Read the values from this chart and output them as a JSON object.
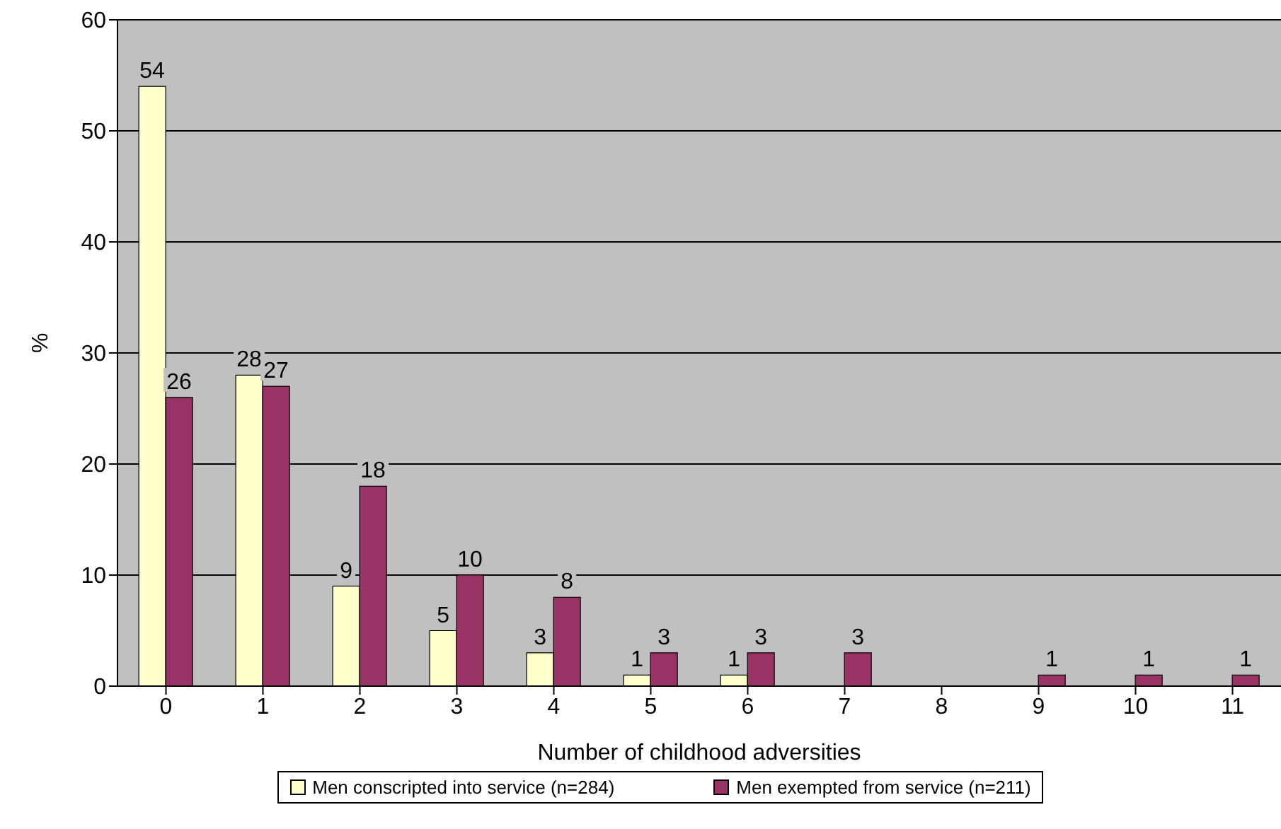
{
  "chart_data": {
    "type": "bar",
    "xlabel": "Number of childhood adversities",
    "ylabel": "%",
    "categories": [
      "0",
      "1",
      "2",
      "3",
      "4",
      "5",
      "6",
      "7",
      "8",
      "9",
      "10",
      "11"
    ],
    "series": [
      {
        "name": "Men conscripted into service (n=284)",
        "color": "#ffffcc",
        "values": [
          54,
          28,
          9,
          5,
          3,
          1,
          1,
          null,
          null,
          null,
          null,
          null
        ]
      },
      {
        "name": "Men exempted from service (n=211)",
        "color": "#993366",
        "values": [
          26,
          27,
          18,
          10,
          8,
          3,
          3,
          3,
          null,
          1,
          1,
          1
        ]
      }
    ],
    "ylim": [
      0,
      60
    ],
    "yticks": [
      0,
      10,
      20,
      30,
      40,
      50,
      60
    ],
    "grid": "y",
    "legend": "bottom",
    "data_labels": true
  }
}
